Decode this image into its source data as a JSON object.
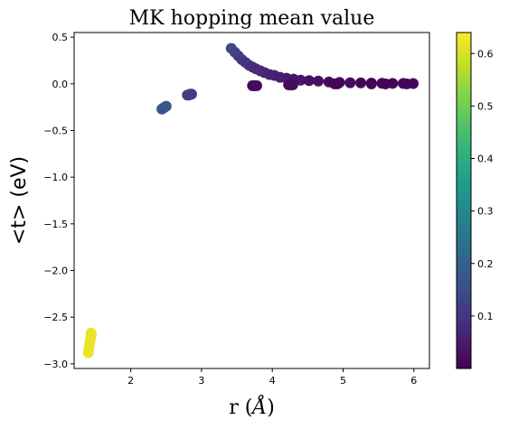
{
  "chart_data": {
    "type": "scatter",
    "title": "MK hopping mean value",
    "xlabel": "r (Å)",
    "ylabel": "<t> (eV)",
    "xlim": [
      1.2,
      6.22
    ],
    "ylim": [
      -3.05,
      0.55
    ],
    "x_ticks": [
      2,
      3,
      4,
      5,
      6
    ],
    "x_tick_labels": [
      "2",
      "3",
      "4",
      "5",
      "6"
    ],
    "y_ticks": [
      0.5,
      0.0,
      -0.5,
      -1.0,
      -1.5,
      -2.0,
      -2.5,
      -3.0
    ],
    "y_tick_labels": [
      "0.5",
      "0.0",
      "−0.5",
      "−1.0",
      "−1.5",
      "−2.0",
      "−2.5",
      "−3.0"
    ],
    "grid": false,
    "colormap": "viridis",
    "colorbar": {
      "range": [
        0.0,
        0.64
      ],
      "ticks": [
        0.1,
        0.2,
        0.3,
        0.4,
        0.5,
        0.6
      ],
      "tick_labels": [
        "0.1",
        "0.2",
        "0.3",
        "0.4",
        "0.5",
        "0.6"
      ]
    },
    "points": [
      {
        "x": 1.4,
        "y": -2.88,
        "c": 0.62
      },
      {
        "x": 1.41,
        "y": -2.83,
        "c": 0.62
      },
      {
        "x": 1.42,
        "y": -2.78,
        "c": 0.62
      },
      {
        "x": 1.43,
        "y": -2.73,
        "c": 0.62
      },
      {
        "x": 1.44,
        "y": -2.69,
        "c": 0.62
      },
      {
        "x": 1.44,
        "y": -2.67,
        "c": 0.62
      },
      {
        "x": 2.44,
        "y": -0.27,
        "c": 0.17
      },
      {
        "x": 2.46,
        "y": -0.26,
        "c": 0.17
      },
      {
        "x": 2.48,
        "y": -0.25,
        "c": 0.17
      },
      {
        "x": 2.5,
        "y": -0.24,
        "c": 0.17
      },
      {
        "x": 2.8,
        "y": -0.12,
        "c": 0.12
      },
      {
        "x": 2.82,
        "y": -0.12,
        "c": 0.12
      },
      {
        "x": 2.84,
        "y": -0.11,
        "c": 0.12
      },
      {
        "x": 2.86,
        "y": -0.11,
        "c": 0.12
      },
      {
        "x": 3.42,
        "y": 0.38,
        "c": 0.14
      },
      {
        "x": 3.47,
        "y": 0.34,
        "c": 0.13
      },
      {
        "x": 3.52,
        "y": 0.3,
        "c": 0.12
      },
      {
        "x": 3.57,
        "y": 0.26,
        "c": 0.11
      },
      {
        "x": 3.62,
        "y": 0.23,
        "c": 0.1
      },
      {
        "x": 3.67,
        "y": 0.2,
        "c": 0.1
      },
      {
        "x": 3.72,
        "y": 0.18,
        "c": 0.09
      },
      {
        "x": 3.77,
        "y": 0.16,
        "c": 0.08
      },
      {
        "x": 3.83,
        "y": 0.14,
        "c": 0.08
      },
      {
        "x": 3.89,
        "y": 0.12,
        "c": 0.07
      },
      {
        "x": 3.96,
        "y": 0.1,
        "c": 0.06
      },
      {
        "x": 4.03,
        "y": 0.09,
        "c": 0.06
      },
      {
        "x": 4.11,
        "y": 0.07,
        "c": 0.05
      },
      {
        "x": 4.2,
        "y": 0.06,
        "c": 0.05
      },
      {
        "x": 4.3,
        "y": 0.05,
        "c": 0.04
      },
      {
        "x": 4.4,
        "y": 0.04,
        "c": 0.04
      },
      {
        "x": 4.52,
        "y": 0.035,
        "c": 0.03
      },
      {
        "x": 4.65,
        "y": 0.03,
        "c": 0.03
      },
      {
        "x": 4.8,
        "y": 0.02,
        "c": 0.02
      },
      {
        "x": 4.95,
        "y": 0.015,
        "c": 0.02
      },
      {
        "x": 5.1,
        "y": 0.012,
        "c": 0.02
      },
      {
        "x": 5.25,
        "y": 0.01,
        "c": 0.01
      },
      {
        "x": 5.4,
        "y": 0.008,
        "c": 0.01
      },
      {
        "x": 5.55,
        "y": 0.006,
        "c": 0.01
      },
      {
        "x": 5.7,
        "y": 0.005,
        "c": 0.01
      },
      {
        "x": 5.85,
        "y": 0.004,
        "c": 0.01
      },
      {
        "x": 5.99,
        "y": 0.003,
        "c": 0.01
      },
      {
        "x": 3.72,
        "y": -0.02,
        "c": 0.02
      },
      {
        "x": 3.74,
        "y": -0.02,
        "c": 0.02
      },
      {
        "x": 3.76,
        "y": -0.02,
        "c": 0.02
      },
      {
        "x": 3.78,
        "y": -0.02,
        "c": 0.02
      },
      {
        "x": 4.23,
        "y": -0.01,
        "c": 0.02
      },
      {
        "x": 4.25,
        "y": -0.01,
        "c": 0.02
      },
      {
        "x": 4.27,
        "y": -0.01,
        "c": 0.02
      },
      {
        "x": 4.29,
        "y": -0.01,
        "c": 0.02
      },
      {
        "x": 4.88,
        "y": 0.0,
        "c": 0.01
      },
      {
        "x": 4.92,
        "y": 0.0,
        "c": 0.01
      },
      {
        "x": 5.4,
        "y": 0.0,
        "c": 0.01
      },
      {
        "x": 5.6,
        "y": 0.0,
        "c": 0.01
      },
      {
        "x": 5.9,
        "y": 0.0,
        "c": 0.01
      }
    ]
  }
}
